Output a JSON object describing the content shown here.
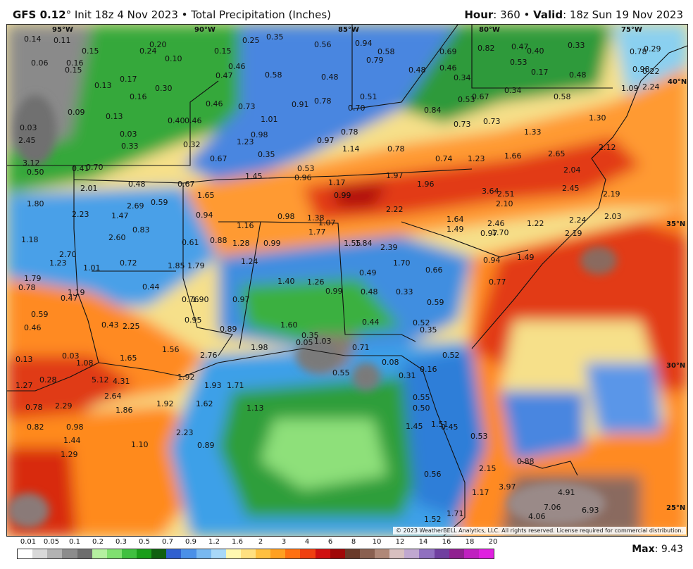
{
  "header": {
    "model": "GFS 0.12",
    "degree": "°",
    "init_text": " Init 18z 4 Nov 2023 • Total Precipitation (Inches)",
    "hour_label": "Hour",
    "hour_value": ": 360 • ",
    "valid_label": "Valid",
    "valid_value": ": 18z Sun 19 Nov 2023"
  },
  "copyright": "© 2023 WeatherBELL Analytics, LLC. All rights reserved. License required for commercial distribution.",
  "legend": {
    "labels": [
      "0.01",
      "0.05",
      "0.1",
      "0.2",
      "0.3",
      "0.5",
      "0.7",
      "0.9",
      "1.2",
      "1.6",
      "2",
      "3",
      "4",
      "6",
      "8",
      "10",
      "12",
      "14",
      "16",
      "18",
      "20"
    ],
    "colors": [
      "#ffffff",
      "#d9d9d9",
      "#b3b3b3",
      "#8c8c8c",
      "#6e6e6e",
      "#b5f0a0",
      "#80e070",
      "#40c040",
      "#1a9e1a",
      "#106010",
      "#3060d0",
      "#4a90e8",
      "#78b8f0",
      "#a8d8f8",
      "#fff8b0",
      "#ffe080",
      "#ffc040",
      "#ffa020",
      "#ff7010",
      "#f04010",
      "#d01010",
      "#a00808",
      "#6a3a2a",
      "#8a6050",
      "#b08878",
      "#d8c0c0",
      "#c0a8d0",
      "#9070c0",
      "#7040a0",
      "#902090",
      "#c020c0",
      "#e020e0"
    ]
  },
  "max": {
    "label": "Max",
    "value": ": 9.43"
  },
  "grid_labels": [
    "95°W",
    "90°W",
    "85°W",
    "80°W",
    "75°W",
    "40°N",
    "35°N",
    "30°N",
    "25°N"
  ],
  "values": [
    "0.14",
    "0.11",
    "0.15",
    "0.24",
    "0.20",
    "0.10",
    "0.15",
    "0.25",
    "0.35",
    "0.56",
    "0.94",
    "0.58",
    "0.79",
    "0.69",
    "0.82",
    "0.47",
    "0.40",
    "0.33",
    "0.78",
    "0.29",
    "0.06",
    "0.16",
    "0.15",
    "0.46",
    "0.58",
    "0.48",
    "0.48",
    "0.46",
    "0.53",
    "0.17",
    "0.48",
    "0.98",
    "0.22",
    "0.13",
    "0.17",
    "0.47",
    "0.51",
    "0.34",
    "0.34",
    "0.58",
    "1.09",
    "2.24",
    "0.09",
    "0.16",
    "0.30",
    "0.46",
    "0.73",
    "0.91",
    "0.78",
    "0.70",
    "0.84",
    "0.53",
    "0.67",
    "0.03",
    "0.13",
    "0.40",
    "0.46",
    "1.01",
    "0.98",
    "0.73",
    "0.73",
    "1.33",
    "1.30",
    "2.45",
    "0.03",
    "0.33",
    "0.32",
    "1.23",
    "0.97",
    "0.78",
    "1.14",
    "0.78",
    "0.74",
    "1.23",
    "1.66",
    "2.65",
    "2.12",
    "3.12",
    "0.35",
    "0.50",
    "0.41",
    "0.70",
    "0.67",
    "1.45",
    "0.53",
    "0.96",
    "1.17",
    "1.97",
    "1.96",
    "2.04",
    "2.01",
    "0.48",
    "0.67",
    "1.65",
    "0.99",
    "3.64",
    "2.51",
    "2.45",
    "2.19",
    "1.80",
    "2.69",
    "0.59",
    "0.94",
    "0.98",
    "1.38",
    "2.22",
    "2.10",
    "2.23",
    "1.47",
    "0.83",
    "1.16",
    "1.07",
    "1.64",
    "2.46",
    "1.22",
    "2.24",
    "2.03",
    "1.18",
    "2.60",
    "0.61",
    "0.88",
    "1.28",
    "0.99",
    "1.77",
    "1.84",
    "2.39",
    "1.49",
    "0.97",
    "1.70",
    "2.19",
    "2.70",
    "1.23",
    "1.01",
    "0.72",
    "1.85",
    "1.79",
    "1.24",
    "1.55",
    "0.94",
    "1.49",
    "1.79",
    "1.70",
    "0.66",
    "0.78",
    "1.19",
    "0.44",
    "1.40",
    "1.26",
    "0.49",
    "0.77",
    "0.47",
    "0.76",
    "1.90",
    "0.97",
    "0.99",
    "0.48",
    "0.33",
    "0.59",
    "0.59",
    "0.43",
    "2.25",
    "0.95",
    "0.89",
    "1.60",
    "0.44",
    "0.52",
    "0.35",
    "0.46",
    "0.35",
    "1.03",
    "0.05",
    "0.13",
    "0.03",
    "1.08",
    "1.65",
    "1.56",
    "2.76",
    "1.98",
    "0.71",
    "0.52",
    "0.08",
    "1.27",
    "0.28",
    "5.12",
    "4.31",
    "1.92",
    "1.93",
    "1.71",
    "0.55",
    "0.31",
    "0.16",
    "0.78",
    "2.29",
    "2.64",
    "1.86",
    "1.92",
    "1.62",
    "1.13",
    "0.55",
    "0.50",
    "0.82",
    "0.98",
    "2.23",
    "1.45",
    "1.51",
    "0.45",
    "0.53",
    "1.44",
    "1.10",
    "0.89",
    "1.29",
    "0.56",
    "2.15",
    "0.88",
    "3.97",
    "4.91",
    "7.06",
    "6.93",
    "4.06",
    "1.52",
    "1.71",
    "1.17"
  ]
}
